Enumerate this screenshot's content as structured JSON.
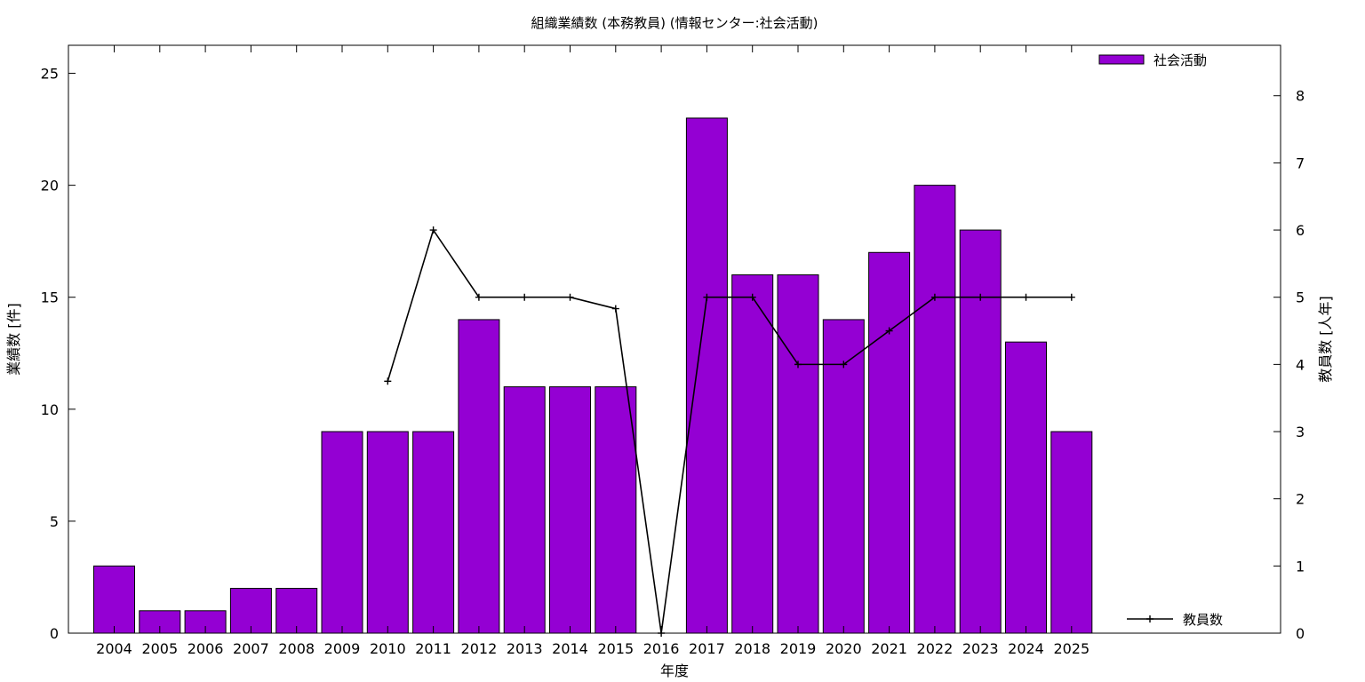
{
  "chart_data": {
    "type": "bar",
    "title": "組織業績数 (本務教員) (情報センター:社会活動)",
    "xlabel": "年度",
    "ylabel": "業績数 [件]",
    "y2label": "教員数 [人年]",
    "categories": [
      "2004",
      "2005",
      "2006",
      "2007",
      "2008",
      "2009",
      "2010",
      "2011",
      "2012",
      "2013",
      "2014",
      "2015",
      "2016",
      "2017",
      "2018",
      "2019",
      "2020",
      "2021",
      "2022",
      "2023",
      "2024",
      "2025"
    ],
    "series": [
      {
        "name": "社会活動",
        "type": "bar",
        "axis": "left",
        "color": "#9400d3",
        "values": [
          3,
          1,
          1,
          2,
          2,
          9,
          9,
          9,
          14,
          11,
          11,
          11,
          0,
          23,
          16,
          16,
          14,
          17,
          20,
          18,
          13,
          9
        ]
      },
      {
        "name": "教員数",
        "type": "line",
        "axis": "right",
        "color": "#000000",
        "values": [
          null,
          null,
          null,
          null,
          null,
          null,
          3.75,
          6,
          5,
          5,
          5,
          4.83,
          0,
          5,
          5,
          4,
          4,
          4.5,
          5,
          5,
          5,
          5
        ]
      }
    ],
    "ylim": [
      0,
      26.25
    ],
    "yticks": [
      0,
      5,
      10,
      15,
      20,
      25
    ],
    "y2lim": [
      0,
      8.75
    ],
    "y2ticks": [
      0,
      1,
      2,
      3,
      4,
      5,
      6,
      7,
      8
    ],
    "grid": false,
    "legend_bar_position": "top-right",
    "legend_line_position": "bottom-right"
  }
}
